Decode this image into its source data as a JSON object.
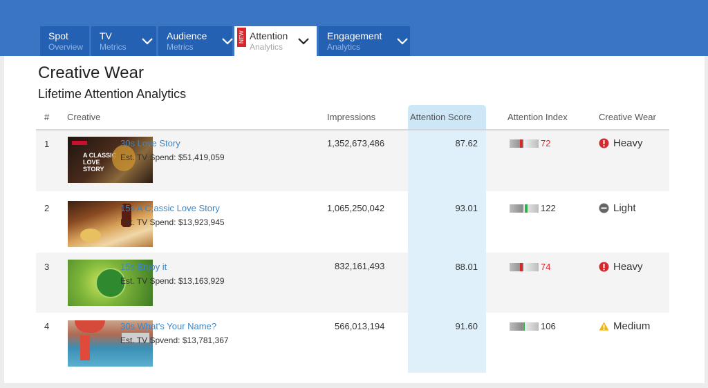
{
  "tabs": [
    {
      "main": "Spot",
      "sub": "Overview",
      "has_chevron": false,
      "active": false,
      "new": false
    },
    {
      "main": "TV",
      "sub": "Metrics",
      "has_chevron": true,
      "active": false,
      "new": false
    },
    {
      "main": "Audience",
      "sub": "Metrics",
      "has_chevron": true,
      "active": false,
      "new": false
    },
    {
      "main": "Attention",
      "sub": "Analytics",
      "has_chevron": true,
      "active": true,
      "new": true,
      "badge": "NEW"
    },
    {
      "main": "Engagement",
      "sub": "Analytics",
      "has_chevron": true,
      "active": false,
      "new": false
    }
  ],
  "page": {
    "title": "Creative Wear",
    "subtitle": "Lifetime Attention Analytics"
  },
  "table": {
    "headers": {
      "num": "#",
      "creative": "Creative",
      "impressions": "Impressions",
      "attention_score": "Attention Score",
      "attention_index": "Attention Index",
      "creative_wear": "Creative Wear"
    },
    "rows": [
      {
        "num": "1",
        "name": "30s Love Story",
        "spend": "Est. TV Spend: $51,419,059",
        "impressions": "1,352,673,486",
        "score": "87.62",
        "index": "72",
        "index_status": "low",
        "wear": "Heavy",
        "wear_icon": "alert-icon",
        "thumb_text": "A CLASSIC LOVE STORY"
      },
      {
        "num": "2",
        "name": "15s A C;assic Love Story",
        "spend": "Est. TV Spend: $13,923,945",
        "impressions": "1,065,250,042",
        "score": "93.01",
        "index": "122",
        "index_status": "high",
        "wear": "Light",
        "wear_icon": "minus-circle-icon",
        "thumb_text": ""
      },
      {
        "num": "3",
        "name": "15s Enjoy it",
        "spend": "Est. TV Spend: $13,163,929",
        "impressions": "832,161,493",
        "score": "88.01",
        "index": "74",
        "index_status": "low",
        "wear": "Heavy",
        "wear_icon": "alert-icon",
        "thumb_text": ""
      },
      {
        "num": "4",
        "name": "30s What's Your Name?",
        "spend": "Est. TV Spvend: $13,781,367",
        "impressions": "566,013,194",
        "score": "91.60",
        "index": "106",
        "index_status": "mid",
        "wear": "Medium",
        "wear_icon": "warning-icon",
        "thumb_text": ""
      }
    ]
  },
  "colors": {
    "topbar": "#3a75c4",
    "tab": "#2561b3",
    "link": "#3a86c8",
    "low": "#d7272d",
    "high": "#2fb34a",
    "warning": "#f2b705"
  }
}
